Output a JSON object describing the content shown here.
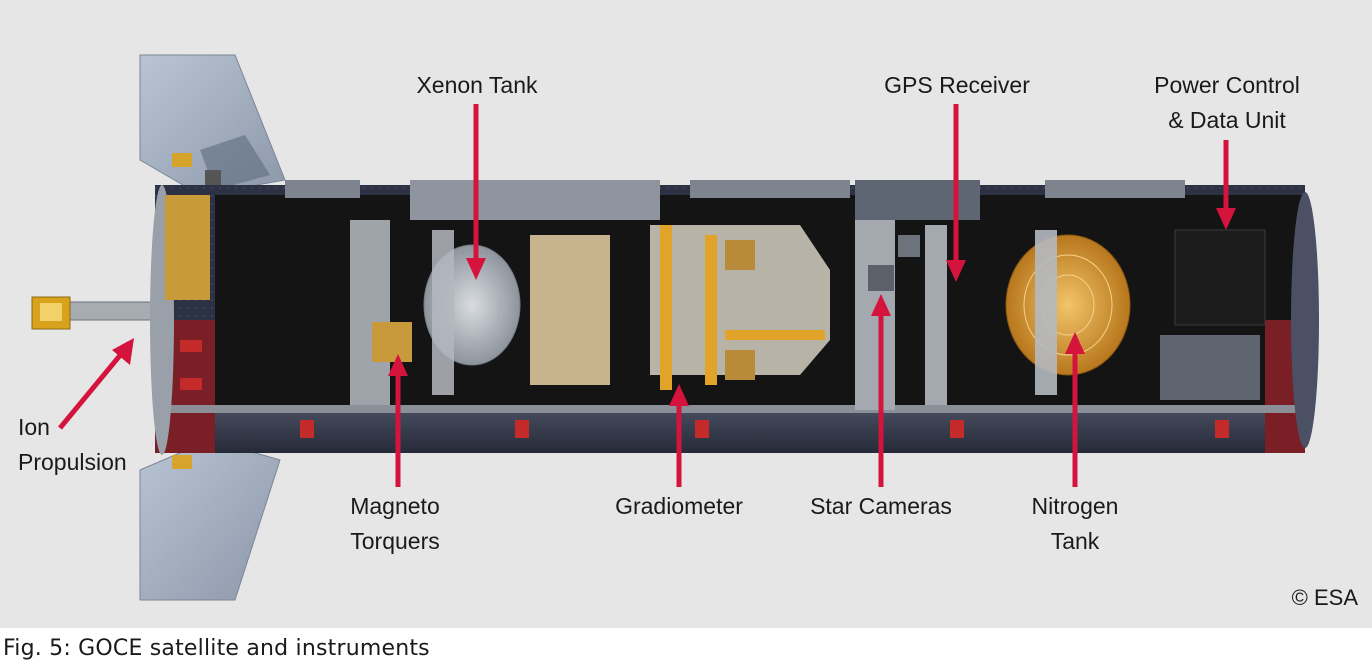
{
  "labels": {
    "xenon_tank": "Xenon Tank",
    "gps_receiver": "GPS Receiver",
    "power_control": [
      "Power Control",
      "& Data Unit"
    ],
    "ion_propulsion": [
      "Ion",
      "Propulsion"
    ],
    "magneto_torquers": [
      "Magneto",
      "Torquers"
    ],
    "gradiometer": "Gradiometer",
    "star_cameras": "Star Cameras",
    "nitrogen_tank": [
      "Nitrogen",
      "Tank"
    ]
  },
  "copyright": "© ESA",
  "caption": "Fig. 5: GOCE satellite and instruments",
  "colors": {
    "arrow": "#d4143c",
    "background": "#e6e6e6",
    "hull_panel": "#2e3447",
    "hull_red": "#7a1f25",
    "gold": "#d9a640",
    "interior": "#141414"
  }
}
